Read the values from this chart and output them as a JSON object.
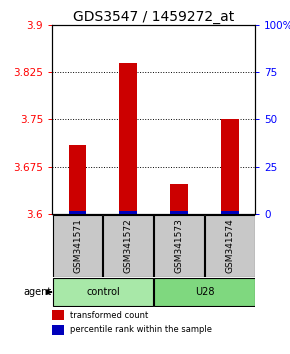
{
  "title": "GDS3547 / 1459272_at",
  "samples": [
    "GSM341571",
    "GSM341572",
    "GSM341573",
    "GSM341574"
  ],
  "red_values": [
    3.71,
    3.84,
    3.648,
    3.75
  ],
  "blue_values": [
    1.5,
    1.5,
    1.5,
    1.5
  ],
  "ylim_left": [
    3.6,
    3.9
  ],
  "ylim_right": [
    0,
    100
  ],
  "yticks_left": [
    3.6,
    3.675,
    3.75,
    3.825,
    3.9
  ],
  "yticks_right": [
    0,
    25,
    50,
    75,
    100
  ],
  "ytick_labels_left": [
    "3.6",
    "3.675",
    "3.75",
    "3.825",
    "3.9"
  ],
  "ytick_labels_right": [
    "0",
    "25",
    "50",
    "75",
    "100%"
  ],
  "grid_lines": [
    3.675,
    3.75,
    3.825
  ],
  "bar_color_red": "#CC0000",
  "bar_color_blue": "#0000BB",
  "sample_box_color": "#C8C8C8",
  "control_color": "#A8E8A8",
  "u28_color": "#7FD87F",
  "agent_label": "agent",
  "legend_red": "transformed count",
  "legend_blue": "percentile rank within the sample",
  "bar_width": 0.35,
  "title_fontsize": 10,
  "tick_fontsize": 7.5,
  "sample_fontsize": 6.5,
  "legend_fontsize": 6,
  "agent_fontsize": 7
}
